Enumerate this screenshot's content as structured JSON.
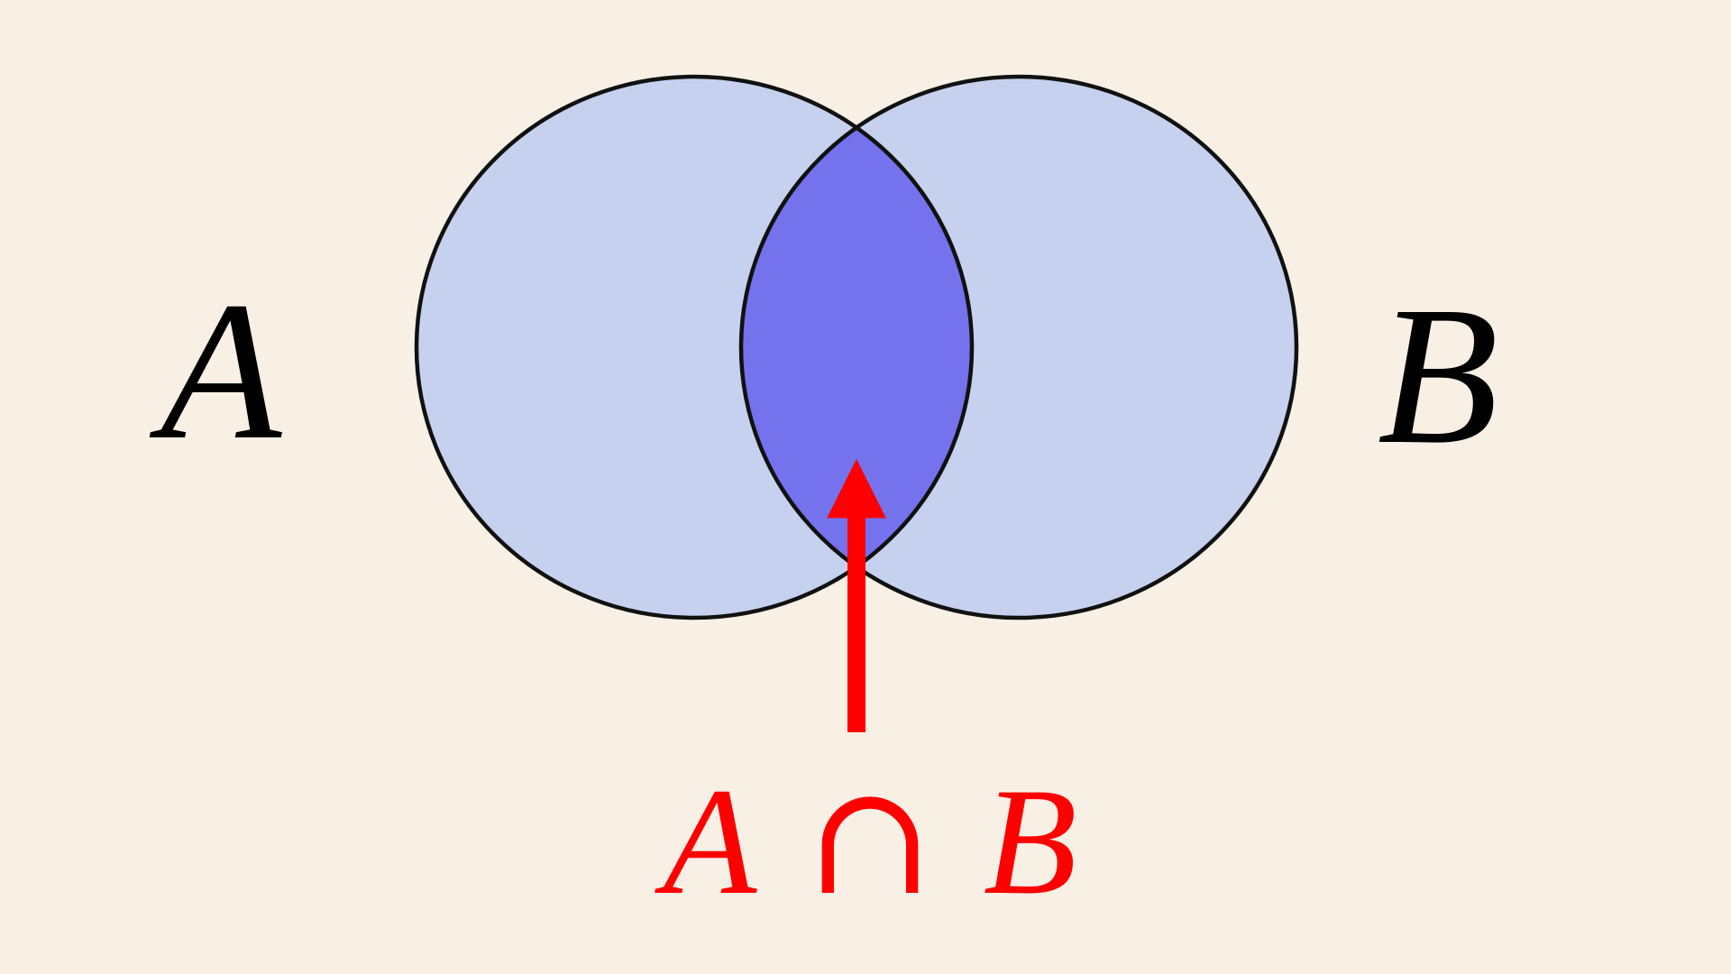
{
  "diagram": {
    "type": "venn-two-sets",
    "set_a_label": "A",
    "set_b_label": "B",
    "intersection": {
      "left": "A",
      "operator": "∩",
      "right": "B"
    }
  },
  "colors": {
    "background": "#f8efe5",
    "set_fill": "#c6d1ef",
    "intersection_fill": "#7572ee",
    "outline": "#111111",
    "label": "#000000",
    "annotation": "#ff0000"
  }
}
